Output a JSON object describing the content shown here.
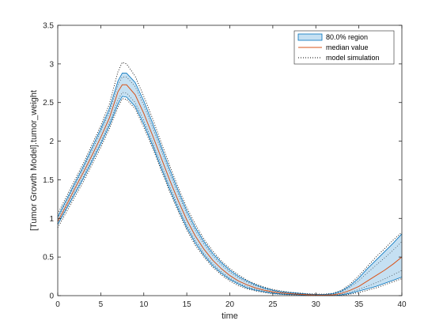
{
  "chart_data": {
    "type": "area",
    "xlabel": "time",
    "ylabel": "[Tumor Growth Model].tumor_weight",
    "xlim": [
      0,
      40
    ],
    "ylim": [
      0,
      3.5
    ],
    "x_ticks": [
      0,
      5,
      10,
      15,
      20,
      25,
      30,
      35,
      40
    ],
    "y_ticks": [
      0,
      0.5,
      1,
      1.5,
      2,
      2.5,
      3,
      3.5
    ],
    "x_tick_labels": [
      "0",
      "5",
      "10",
      "15",
      "20",
      "25",
      "30",
      "35",
      "40"
    ],
    "y_tick_labels": [
      "0",
      "0.5",
      "1",
      "1.5",
      "2",
      "2.5",
      "3",
      "3.5"
    ],
    "grid": false,
    "legend_position": "top-right",
    "legend": {
      "region": "80.0% region",
      "median": "median value",
      "simulation": "model simulation"
    },
    "colors": {
      "region_fill": "#c5e0f2",
      "region_edge": "#0072bd",
      "median": "#d95319",
      "simulation": "#000000",
      "axes": "#262626"
    },
    "x": [
      0,
      1,
      2,
      3,
      4,
      5,
      6,
      7,
      7.5,
      8,
      9,
      10,
      11,
      12,
      13,
      14,
      15,
      16,
      17,
      18,
      19,
      20,
      21,
      22,
      23,
      24,
      25,
      26,
      27,
      28,
      29,
      30,
      31,
      32,
      33,
      34,
      35,
      36,
      37,
      38,
      39,
      40
    ],
    "series": [
      {
        "name": "80.0% region",
        "kind": "band",
        "lower": [
          0.92,
          1.12,
          1.32,
          1.52,
          1.74,
          1.96,
          2.2,
          2.48,
          2.58,
          2.57,
          2.45,
          2.22,
          1.95,
          1.66,
          1.38,
          1.12,
          0.88,
          0.68,
          0.52,
          0.39,
          0.29,
          0.21,
          0.15,
          0.1,
          0.07,
          0.05,
          0.03,
          0.02,
          0.015,
          0.01,
          0.005,
          0.003,
          0.0,
          0.0,
          0.01,
          0.03,
          0.06,
          0.09,
          0.12,
          0.16,
          0.2,
          0.24
        ],
        "upper": [
          1.02,
          1.24,
          1.46,
          1.68,
          1.92,
          2.16,
          2.42,
          2.78,
          2.88,
          2.88,
          2.76,
          2.52,
          2.24,
          1.94,
          1.64,
          1.36,
          1.1,
          0.88,
          0.7,
          0.55,
          0.43,
          0.33,
          0.25,
          0.19,
          0.14,
          0.1,
          0.07,
          0.05,
          0.04,
          0.03,
          0.02,
          0.015,
          0.015,
          0.025,
          0.06,
          0.13,
          0.23,
          0.35,
          0.46,
          0.57,
          0.68,
          0.8
        ]
      },
      {
        "name": "median value",
        "kind": "line",
        "values": [
          0.96,
          1.17,
          1.39,
          1.6,
          1.82,
          2.05,
          2.3,
          2.64,
          2.73,
          2.73,
          2.6,
          2.36,
          2.08,
          1.79,
          1.5,
          1.23,
          0.98,
          0.77,
          0.6,
          0.46,
          0.35,
          0.26,
          0.19,
          0.14,
          0.1,
          0.07,
          0.05,
          0.035,
          0.025,
          0.018,
          0.012,
          0.008,
          0.006,
          0.01,
          0.03,
          0.07,
          0.12,
          0.19,
          0.26,
          0.33,
          0.41,
          0.5
        ]
      },
      {
        "name": "model simulation",
        "kind": "dotted-envelope",
        "lower": [
          0.88,
          1.08,
          1.28,
          1.48,
          1.7,
          1.92,
          2.16,
          2.44,
          2.55,
          2.54,
          2.42,
          2.18,
          1.92,
          1.63,
          1.35,
          1.09,
          0.85,
          0.65,
          0.5,
          0.37,
          0.27,
          0.19,
          0.13,
          0.09,
          0.06,
          0.04,
          0.025,
          0.015,
          0.01,
          0.005,
          0.0,
          0.0,
          0.0,
          0.0,
          0.0,
          0.02,
          0.04,
          0.07,
          0.1,
          0.14,
          0.18,
          0.22
        ],
        "upper": [
          1.06,
          1.28,
          1.5,
          1.72,
          1.96,
          2.2,
          2.48,
          2.9,
          3.02,
          3.0,
          2.84,
          2.58,
          2.3,
          1.99,
          1.69,
          1.4,
          1.14,
          0.92,
          0.73,
          0.58,
          0.45,
          0.35,
          0.27,
          0.2,
          0.15,
          0.11,
          0.08,
          0.06,
          0.045,
          0.035,
          0.025,
          0.02,
          0.02,
          0.03,
          0.07,
          0.15,
          0.26,
          0.38,
          0.5,
          0.61,
          0.72,
          0.82
        ]
      }
    ]
  }
}
